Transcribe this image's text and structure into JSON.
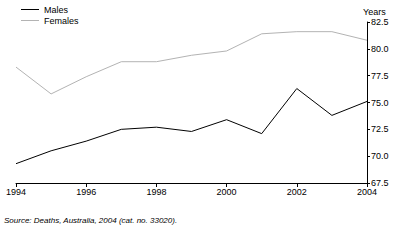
{
  "chart_data": {
    "type": "line",
    "ylabel": "Years",
    "annotations": [
      "Source: Deaths, Australia, 2004 (cat. no. 33020)."
    ],
    "x": [
      1994,
      1995,
      1996,
      1997,
      1998,
      1999,
      2000,
      2001,
      2002,
      2003,
      2004
    ],
    "series": [
      {
        "name": "Males",
        "color": "#000000",
        "values": [
          69.3,
          70.5,
          71.4,
          72.5,
          72.7,
          72.3,
          73.4,
          72.1,
          76.3,
          73.8,
          75.1
        ]
      },
      {
        "name": "Females",
        "color": "#b3b3b3",
        "values": [
          78.3,
          75.8,
          77.4,
          78.8,
          78.8,
          79.4,
          79.8,
          81.4,
          81.6,
          81.6,
          80.8
        ]
      }
    ],
    "xlim": [
      1994,
      2004
    ],
    "xticks": [
      1994,
      1996,
      1998,
      2000,
      2002,
      2004
    ],
    "ylim": [
      67.5,
      82.5
    ],
    "yticks": [
      67.5,
      {
        "value": 70,
        "label": "70.0"
      },
      72.5,
      {
        "value": 75,
        "label": "75.0"
      },
      77.5,
      {
        "value": 80,
        "label": "80.0"
      },
      82.5
    ],
    "grid": false,
    "legend": "top-left"
  }
}
